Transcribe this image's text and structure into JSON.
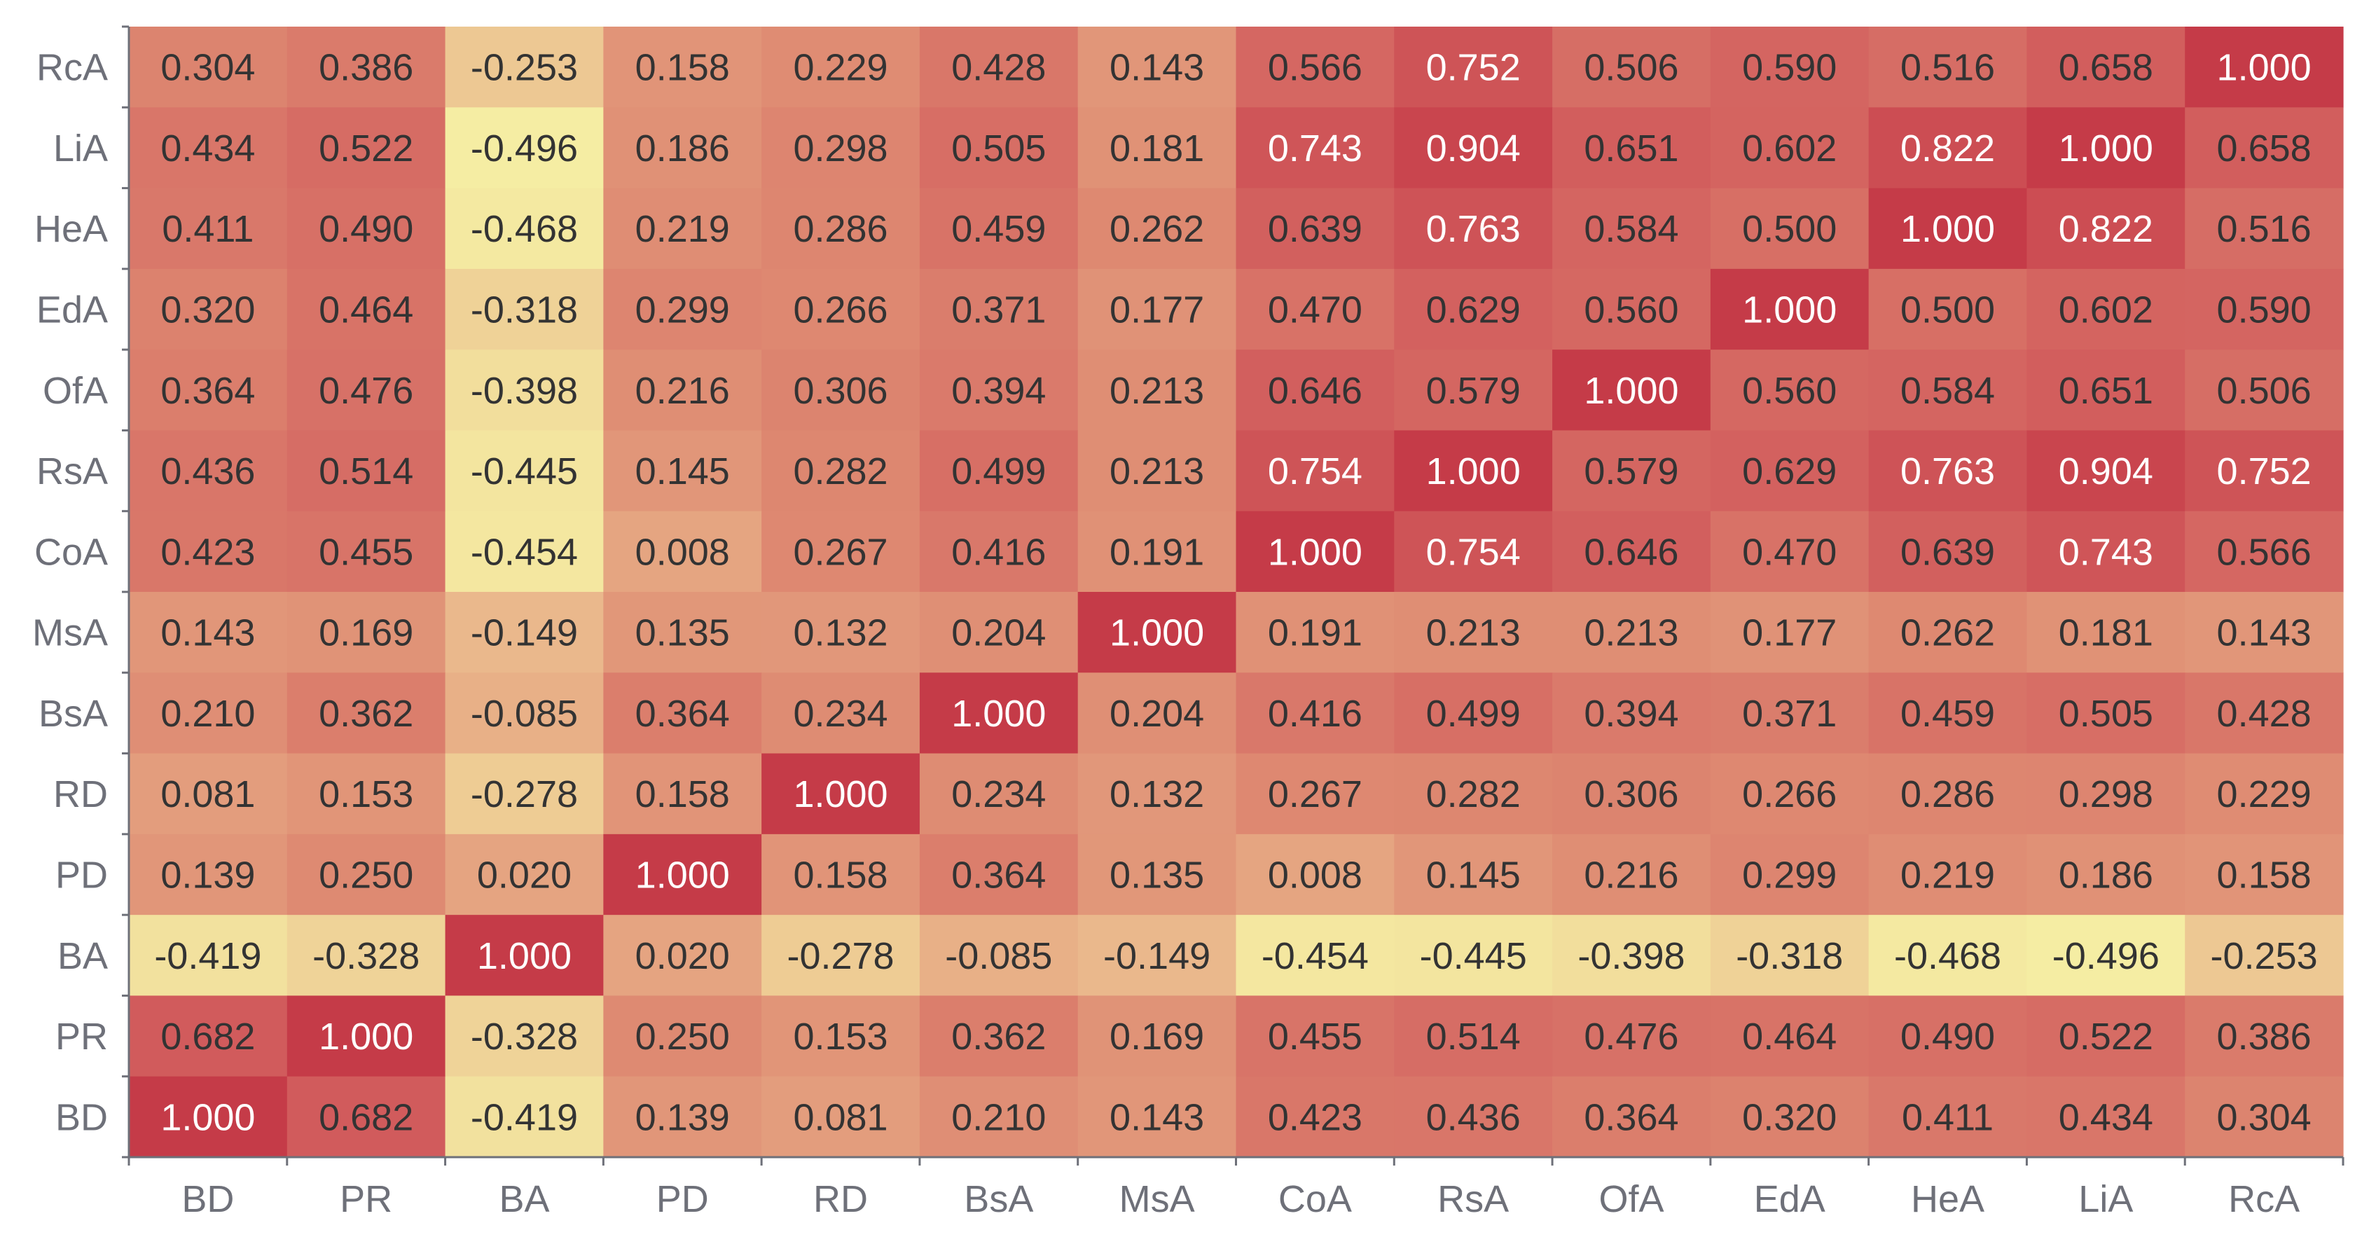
{
  "chart_data": {
    "type": "heatmap",
    "x_categories": [
      "BD",
      "PR",
      "BA",
      "PD",
      "RD",
      "BsA",
      "MsA",
      "CoA",
      "RsA",
      "OfA",
      "EdA",
      "HeA",
      "LiA",
      "RcA"
    ],
    "y_categories_top_to_bottom": [
      "RcA",
      "LiA",
      "HeA",
      "EdA",
      "OfA",
      "RsA",
      "CoA",
      "MsA",
      "BsA",
      "RD",
      "PD",
      "BA",
      "PR",
      "BD"
    ],
    "values": [
      [
        "0.304",
        "0.386",
        "-0.253",
        "0.158",
        "0.229",
        "0.428",
        "0.143",
        "0.566",
        "0.752",
        "0.506",
        "0.590",
        "0.516",
        "0.658",
        "1.000"
      ],
      [
        "0.434",
        "0.522",
        "-0.496",
        "0.186",
        "0.298",
        "0.505",
        "0.181",
        "0.743",
        "0.904",
        "0.651",
        "0.602",
        "0.822",
        "1.000",
        "0.658"
      ],
      [
        "0.411",
        "0.490",
        "-0.468",
        "0.219",
        "0.286",
        "0.459",
        "0.262",
        "0.639",
        "0.763",
        "0.584",
        "0.500",
        "1.000",
        "0.822",
        "0.516"
      ],
      [
        "0.320",
        "0.464",
        "-0.318",
        "0.299",
        "0.266",
        "0.371",
        "0.177",
        "0.470",
        "0.629",
        "0.560",
        "1.000",
        "0.500",
        "0.602",
        "0.590"
      ],
      [
        "0.364",
        "0.476",
        "-0.398",
        "0.216",
        "0.306",
        "0.394",
        "0.213",
        "0.646",
        "0.579",
        "1.000",
        "0.560",
        "0.584",
        "0.651",
        "0.506"
      ],
      [
        "0.436",
        "0.514",
        "-0.445",
        "0.145",
        "0.282",
        "0.499",
        "0.213",
        "0.754",
        "1.000",
        "0.579",
        "0.629",
        "0.763",
        "0.904",
        "0.752"
      ],
      [
        "0.423",
        "0.455",
        "-0.454",
        "0.008",
        "0.267",
        "0.416",
        "0.191",
        "1.000",
        "0.754",
        "0.646",
        "0.470",
        "0.639",
        "0.743",
        "0.566"
      ],
      [
        "0.143",
        "0.169",
        "-0.149",
        "0.135",
        "0.132",
        "0.204",
        "1.000",
        "0.191",
        "0.213",
        "0.213",
        "0.177",
        "0.262",
        "0.181",
        "0.143"
      ],
      [
        "0.210",
        "0.362",
        "-0.085",
        "0.364",
        "0.234",
        "1.000",
        "0.204",
        "0.416",
        "0.499",
        "0.394",
        "0.371",
        "0.459",
        "0.505",
        "0.428"
      ],
      [
        "0.081",
        "0.153",
        "-0.278",
        "0.158",
        "1.000",
        "0.234",
        "0.132",
        "0.267",
        "0.282",
        "0.306",
        "0.266",
        "0.286",
        "0.298",
        "0.229"
      ],
      [
        "0.139",
        "0.250",
        "0.020",
        "1.000",
        "0.158",
        "0.364",
        "0.135",
        "0.008",
        "0.145",
        "0.216",
        "0.299",
        "0.219",
        "0.186",
        "0.158"
      ],
      [
        "-0.419",
        "-0.328",
        "1.000",
        "0.020",
        "-0.278",
        "-0.085",
        "-0.149",
        "-0.454",
        "-0.445",
        "-0.398",
        "-0.318",
        "-0.468",
        "-0.496",
        "-0.253"
      ],
      [
        "0.682",
        "1.000",
        "-0.328",
        "0.250",
        "0.153",
        "0.362",
        "0.169",
        "0.455",
        "0.514",
        "0.476",
        "0.464",
        "0.490",
        "0.522",
        "0.386"
      ],
      [
        "1.000",
        "0.682",
        "-0.419",
        "0.139",
        "0.081",
        "0.210",
        "0.143",
        "0.423",
        "0.436",
        "0.364",
        "0.320",
        "0.411",
        "0.434",
        "0.304"
      ]
    ],
    "value_range": [
      -0.5,
      1.0
    ],
    "colors": [
      "#f5eea3",
      "#e9b48a",
      "#de8a72",
      "#d3615f",
      "#c53b48"
    ],
    "label_colors": {
      "dark": "#333333",
      "light": "#ffffff"
    },
    "axis_color": "#6e7079",
    "legend": "none",
    "grid": false
  }
}
